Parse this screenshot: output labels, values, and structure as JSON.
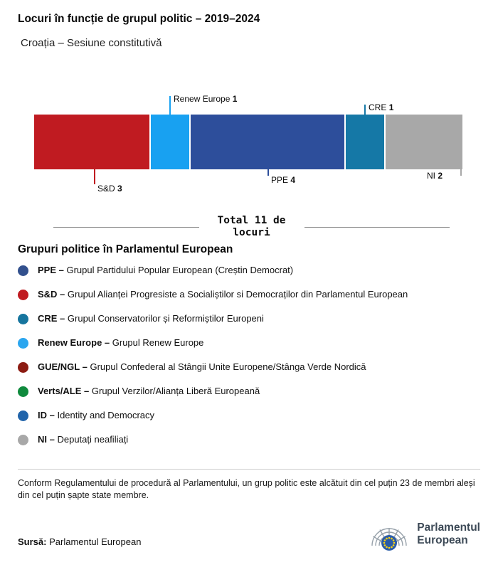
{
  "header": {
    "title": "Locuri în funcție de grupul politic – 2019–2024",
    "subtitle": "Croația – Sesiune constitutivă"
  },
  "chart_data": {
    "type": "bar",
    "orientation": "horizontal-stacked",
    "title": "Locuri în funcție de grupul politic – 2019–2024",
    "subtitle": "Croația – Sesiune constitutivă",
    "total_seats": 11,
    "total_label": "Total 11 de locuri",
    "categories": [
      "S&D",
      "Renew Europe",
      "PPE",
      "CRE",
      "NI"
    ],
    "values": [
      3,
      1,
      4,
      1,
      2
    ],
    "segments": [
      {
        "group": "S&D",
        "seats": 3,
        "color": "#c01b21",
        "callout": "below"
      },
      {
        "group": "Renew Europe",
        "seats": 1,
        "color": "#18a1f1",
        "callout": "above"
      },
      {
        "group": "PPE",
        "seats": 4,
        "color": "#2d4e9b",
        "callout": "below"
      },
      {
        "group": "CRE",
        "seats": 1,
        "color": "#1578a6",
        "callout": "above"
      },
      {
        "group": "NI",
        "seats": 2,
        "color": "#a8a8a8",
        "callout": "below"
      }
    ]
  },
  "legend": {
    "heading": "Grupuri politice în Parlamentul European",
    "items": [
      {
        "abbr": "PPE –",
        "desc": "Grupul Partidului Popular European (Creștin Democrat)",
        "color": "#32508d"
      },
      {
        "abbr": "S&D –",
        "desc": "Grupul Alianței Progresiste a Socialiștilor si Democraților din Parlamentul European",
        "color": "#c01b21"
      },
      {
        "abbr": "CRE –",
        "desc": "Grupul Conservatorilor și Reformiștilor Europeni",
        "color": "#16759e"
      },
      {
        "abbr": "Renew Europe –",
        "desc": "Grupul Renew Europe",
        "color": "#2ba6ef"
      },
      {
        "abbr": "GUE/NGL –",
        "desc": "Grupul Confederal al Stângii Unite Europene/Stânga Verde Nordică",
        "color": "#8c1b12"
      },
      {
        "abbr": "Verts/ALE –",
        "desc": "Grupul Verzilor/Alianța Liberă Europeană",
        "color": "#0f8a3d"
      },
      {
        "abbr": "ID –",
        "desc": "Identity and Democracy",
        "color": "#2164aa"
      },
      {
        "abbr": "NI –",
        "desc": "Deputați neafiliați",
        "color": "#a8a8a8"
      }
    ]
  },
  "footnote": "Conform Regulamentului de procedură al Parlamentului, un grup politic este alcătuit din cel puțin 23 de membri aleși din cel puțin șapte state membre.",
  "source": {
    "label": "Sursă:",
    "value": "Parlamentul European"
  },
  "logo": {
    "name": "Parlamentul European",
    "line1": "Parlamentul",
    "line2": "European"
  }
}
